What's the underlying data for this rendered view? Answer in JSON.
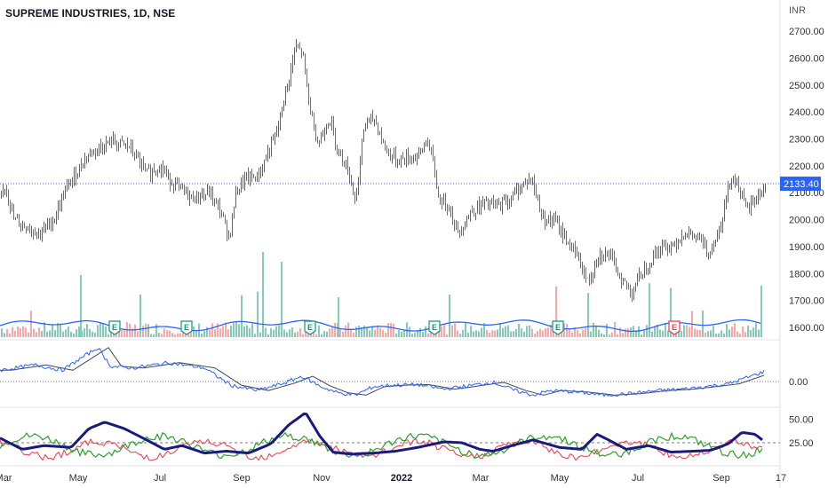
{
  "header": {
    "title": "SUPREME INDUSTRIES, 1D, NSE",
    "currency": "INR"
  },
  "chart_data": {
    "type": "bar",
    "price_axis": {
      "min": 1600,
      "max": 2700,
      "ticks": [
        "2700.00",
        "2600.00",
        "2500.00",
        "2400.00",
        "2300.00",
        "2200.00",
        "2100.00",
        "2000.00",
        "1900.00",
        "1800.00",
        "1700.00",
        "1600.00"
      ]
    },
    "last_price": "2133.40",
    "x_labels": [
      "Mar",
      "May",
      "Jul",
      "Sep",
      "Nov",
      "2022",
      "Mar",
      "May",
      "Jul",
      "Sep",
      "17"
    ],
    "osc1": {
      "ticks": [
        "0.00"
      ]
    },
    "osc2": {
      "ticks": [
        "50.00",
        "25.00"
      ],
      "reference": 25
    },
    "earnings_markers": [
      "E",
      "E",
      "E",
      "E",
      "E",
      "E"
    ],
    "colors": {
      "up": "#2962ff",
      "down": "#f23645",
      "vol_up": "#86cbb8",
      "vol_down": "#f7a9a8",
      "vol_ma": "#2962ff",
      "dmi_adx": "#1a1a7e",
      "dmi_plus": "#2e9e2e",
      "dmi_minus": "#f23645",
      "last_price_bg": "#2962ff"
    },
    "price_anchors": [
      [
        0,
        2080
      ],
      [
        6,
        2130
      ],
      [
        15,
        2000
      ],
      [
        28,
        1975
      ],
      [
        45,
        1950
      ],
      [
        60,
        2000
      ],
      [
        72,
        2100
      ],
      [
        85,
        2170
      ],
      [
        95,
        2230
      ],
      [
        110,
        2265
      ],
      [
        125,
        2290
      ],
      [
        145,
        2270
      ],
      [
        165,
        2170
      ],
      [
        180,
        2200
      ],
      [
        190,
        2150
      ],
      [
        200,
        2120
      ],
      [
        215,
        2080
      ],
      [
        235,
        2100
      ],
      [
        248,
        2030
      ],
      [
        258,
        1930
      ],
      [
        265,
        2100
      ],
      [
        275,
        2150
      ],
      [
        290,
        2160
      ],
      [
        300,
        2240
      ],
      [
        310,
        2310
      ],
      [
        322,
        2480
      ],
      [
        332,
        2640
      ],
      [
        340,
        2620
      ],
      [
        348,
        2420
      ],
      [
        358,
        2280
      ],
      [
        370,
        2380
      ],
      [
        380,
        2260
      ],
      [
        390,
        2200
      ],
      [
        400,
        2070
      ],
      [
        410,
        2360
      ],
      [
        422,
        2370
      ],
      [
        432,
        2270
      ],
      [
        445,
        2220
      ],
      [
        460,
        2230
      ],
      [
        472,
        2240
      ],
      [
        480,
        2300
      ],
      [
        488,
        2200
      ],
      [
        493,
        2080
      ],
      [
        505,
        2050
      ],
      [
        515,
        1950
      ],
      [
        530,
        2030
      ],
      [
        545,
        2060
      ],
      [
        560,
        2050
      ],
      [
        575,
        2080
      ],
      [
        590,
        2140
      ],
      [
        598,
        2150
      ],
      [
        610,
        2010
      ],
      [
        625,
        1990
      ],
      [
        640,
        1910
      ],
      [
        650,
        1860
      ],
      [
        662,
        1760
      ],
      [
        672,
        1870
      ],
      [
        685,
        1870
      ],
      [
        697,
        1790
      ],
      [
        710,
        1730
      ],
      [
        722,
        1800
      ],
      [
        740,
        1890
      ],
      [
        755,
        1900
      ],
      [
        770,
        1950
      ],
      [
        785,
        1930
      ],
      [
        797,
        1880
      ],
      [
        808,
        1950
      ],
      [
        815,
        2050
      ],
      [
        823,
        2170
      ],
      [
        830,
        2130
      ],
      [
        840,
        2030
      ],
      [
        850,
        2080
      ],
      [
        858,
        2110
      ],
      [
        862,
        2130
      ]
    ],
    "osc1_anchors": [
      [
        0,
        0.15
      ],
      [
        40,
        0.22
      ],
      [
        70,
        0.15
      ],
      [
        110,
        0.45
      ],
      [
        125,
        0.2
      ],
      [
        150,
        0.18
      ],
      [
        190,
        0.25
      ],
      [
        230,
        0.18
      ],
      [
        260,
        -0.05
      ],
      [
        290,
        -0.12
      ],
      [
        320,
        -0.02
      ],
      [
        340,
        0.07
      ],
      [
        360,
        -0.06
      ],
      [
        380,
        -0.15
      ],
      [
        400,
        -0.18
      ],
      [
        420,
        -0.07
      ],
      [
        440,
        -0.05
      ],
      [
        470,
        -0.04
      ],
      [
        500,
        -0.1
      ],
      [
        520,
        -0.07
      ],
      [
        555,
        -0.01
      ],
      [
        580,
        -0.12
      ],
      [
        600,
        -0.18
      ],
      [
        620,
        -0.12
      ],
      [
        650,
        -0.14
      ],
      [
        680,
        -0.18
      ],
      [
        710,
        -0.16
      ],
      [
        740,
        -0.12
      ],
      [
        770,
        -0.1
      ],
      [
        800,
        -0.06
      ],
      [
        820,
        -0.03
      ],
      [
        845,
        0.07
      ],
      [
        860,
        0.13
      ]
    ],
    "adx_anchors": [
      [
        0,
        30
      ],
      [
        25,
        18
      ],
      [
        50,
        22
      ],
      [
        80,
        20
      ],
      [
        100,
        40
      ],
      [
        118,
        47
      ],
      [
        140,
        40
      ],
      [
        165,
        28
      ],
      [
        185,
        18
      ],
      [
        205,
        22
      ],
      [
        230,
        14
      ],
      [
        255,
        16
      ],
      [
        280,
        14
      ],
      [
        305,
        24
      ],
      [
        325,
        44
      ],
      [
        344,
        57
      ],
      [
        360,
        32
      ],
      [
        375,
        15
      ],
      [
        395,
        13
      ],
      [
        420,
        14
      ],
      [
        445,
        16
      ],
      [
        470,
        20
      ],
      [
        500,
        26
      ],
      [
        520,
        25
      ],
      [
        540,
        18
      ],
      [
        555,
        16
      ],
      [
        580,
        23
      ],
      [
        600,
        28
      ],
      [
        630,
        20
      ],
      [
        655,
        18
      ],
      [
        672,
        34
      ],
      [
        685,
        28
      ],
      [
        705,
        18
      ],
      [
        730,
        22
      ],
      [
        755,
        15
      ],
      [
        780,
        16
      ],
      [
        800,
        17
      ],
      [
        820,
        24
      ],
      [
        835,
        36
      ],
      [
        850,
        34
      ],
      [
        862,
        25
      ]
    ]
  }
}
